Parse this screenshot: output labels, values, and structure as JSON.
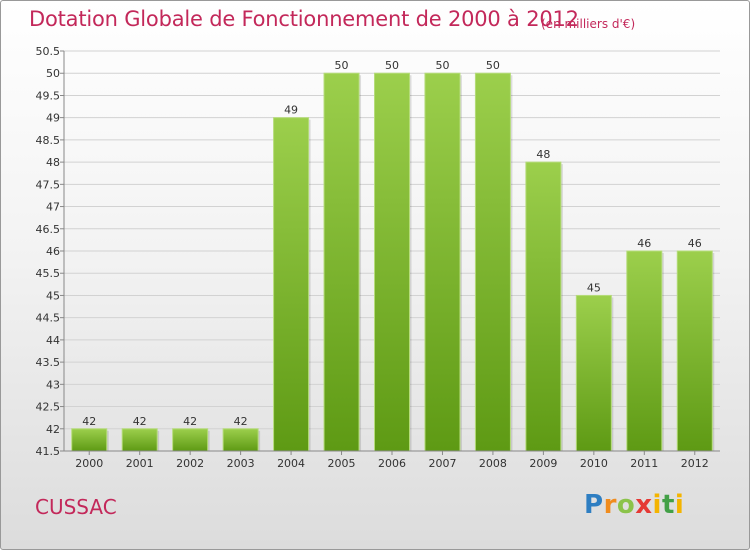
{
  "header": {
    "title": "Dotation Globale de Fonctionnement de 2000 à 2012",
    "unit_note": "(en milliers d'€)"
  },
  "footer": {
    "city": "CUSSAC",
    "logo": {
      "p": "P",
      "r": "r",
      "o": "o",
      "x": "x",
      "i1": "i",
      "t": "t",
      "i2": "i"
    }
  },
  "colors": {
    "title": "#c3285a",
    "bar_light": "#9ccf4c",
    "bar_dark": "#5e9a14",
    "grid": "#d2d2d2",
    "axis": "#888888"
  },
  "chart_data": {
    "type": "bar",
    "title": "Dotation Globale de Fonctionnement de 2000 à 2012",
    "subtitle": "(en milliers d'€)",
    "categories": [
      "2000",
      "2001",
      "2002",
      "2003",
      "2004",
      "2005",
      "2006",
      "2007",
      "2008",
      "2009",
      "2010",
      "2011",
      "2012"
    ],
    "values": [
      42,
      42,
      42,
      42,
      49,
      50,
      50,
      50,
      50,
      48,
      45,
      46,
      46
    ],
    "ylim": [
      41.5,
      50.5
    ],
    "yticks": [
      "41.5",
      "42",
      "42.5",
      "43",
      "43.5",
      "44",
      "44.5",
      "45",
      "45.5",
      "46",
      "46.5",
      "47",
      "47.5",
      "48",
      "48.5",
      "49",
      "49.5",
      "50",
      "50.5"
    ],
    "xlabel": "",
    "ylabel": "",
    "grid": true,
    "legend": "none"
  }
}
